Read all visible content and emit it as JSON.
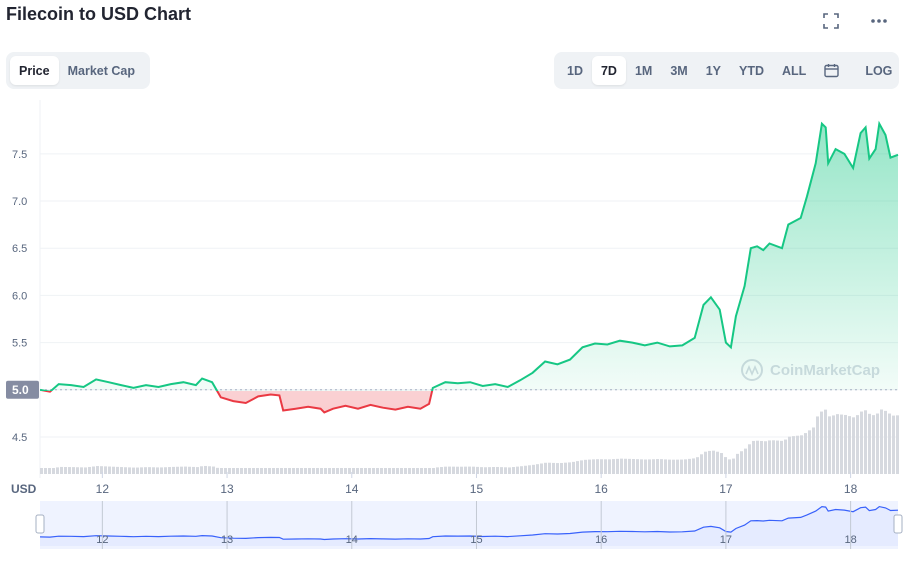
{
  "header": {
    "title": "Filecoin to USD Chart",
    "fullscreen_icon": "expand-icon",
    "more_icon": "more-horizontal-icon"
  },
  "toggle": {
    "items": [
      "Price",
      "Market Cap"
    ],
    "active": "Price"
  },
  "ranges": {
    "items": [
      "1D",
      "7D",
      "1M",
      "3M",
      "1Y",
      "YTD",
      "ALL"
    ],
    "active": "7D",
    "calendar_icon": "calendar-icon",
    "log_label": "LOG"
  },
  "watermark": "CoinMarketCap",
  "colors": {
    "up": "#16c784",
    "down": "#ea3943",
    "volume": "#d6d9df",
    "navigator_line": "#3861fb",
    "navigator_fill": "#e5ebff"
  },
  "chart_data": {
    "type": "line",
    "x_unit": "day",
    "xlabel": "",
    "ylabel": "USD",
    "xlim": [
      11.5,
      18.38
    ],
    "ylim": [
      4.15,
      7.88
    ],
    "yticks": [
      4.5,
      5.0,
      5.5,
      6.0,
      6.5,
      7.0,
      7.5
    ],
    "xticks": [
      12,
      13,
      14,
      15,
      16,
      17,
      18
    ],
    "reference_price": 5.0,
    "current_label": "5.0",
    "series": [
      {
        "values": [
          [
            11.5,
            5.0
          ],
          [
            11.58,
            4.98
          ],
          [
            11.65,
            5.06
          ],
          [
            11.75,
            5.05
          ],
          [
            11.85,
            5.03
          ],
          [
            11.95,
            5.11
          ],
          [
            12.05,
            5.08
          ],
          [
            12.15,
            5.05
          ],
          [
            12.25,
            5.02
          ],
          [
            12.35,
            5.05
          ],
          [
            12.45,
            5.03
          ],
          [
            12.55,
            5.06
          ],
          [
            12.65,
            5.08
          ],
          [
            12.75,
            5.05
          ],
          [
            12.8,
            5.12
          ],
          [
            12.88,
            5.08
          ],
          [
            12.95,
            4.92
          ],
          [
            13.05,
            4.88
          ],
          [
            13.15,
            4.86
          ],
          [
            13.25,
            4.93
          ],
          [
            13.35,
            4.95
          ],
          [
            13.42,
            4.94
          ],
          [
            13.45,
            4.78
          ],
          [
            13.55,
            4.8
          ],
          [
            13.65,
            4.82
          ],
          [
            13.75,
            4.8
          ],
          [
            13.78,
            4.76
          ],
          [
            13.85,
            4.8
          ],
          [
            13.95,
            4.83
          ],
          [
            14.05,
            4.8
          ],
          [
            14.15,
            4.84
          ],
          [
            14.25,
            4.81
          ],
          [
            14.35,
            4.79
          ],
          [
            14.45,
            4.82
          ],
          [
            14.55,
            4.8
          ],
          [
            14.62,
            4.85
          ],
          [
            14.65,
            5.02
          ],
          [
            14.75,
            5.08
          ],
          [
            14.85,
            5.07
          ],
          [
            14.95,
            5.08
          ],
          [
            15.05,
            5.04
          ],
          [
            15.15,
            5.06
          ],
          [
            15.25,
            5.03
          ],
          [
            15.35,
            5.1
          ],
          [
            15.45,
            5.18
          ],
          [
            15.55,
            5.3
          ],
          [
            15.65,
            5.27
          ],
          [
            15.75,
            5.32
          ],
          [
            15.85,
            5.45
          ],
          [
            15.95,
            5.49
          ],
          [
            16.05,
            5.48
          ],
          [
            16.15,
            5.52
          ],
          [
            16.25,
            5.5
          ],
          [
            16.35,
            5.47
          ],
          [
            16.45,
            5.5
          ],
          [
            16.55,
            5.46
          ],
          [
            16.65,
            5.47
          ],
          [
            16.75,
            5.55
          ],
          [
            16.82,
            5.9
          ],
          [
            16.88,
            5.98
          ],
          [
            16.95,
            5.85
          ],
          [
            17.0,
            5.5
          ],
          [
            17.04,
            5.45
          ],
          [
            17.08,
            5.78
          ],
          [
            17.15,
            6.1
          ],
          [
            17.2,
            6.5
          ],
          [
            17.25,
            6.52
          ],
          [
            17.3,
            6.48
          ],
          [
            17.35,
            6.55
          ],
          [
            17.45,
            6.5
          ],
          [
            17.5,
            6.75
          ],
          [
            17.6,
            6.82
          ],
          [
            17.65,
            7.05
          ],
          [
            17.72,
            7.4
          ],
          [
            17.77,
            7.82
          ],
          [
            17.8,
            7.78
          ],
          [
            17.82,
            7.4
          ],
          [
            17.88,
            7.55
          ],
          [
            17.95,
            7.5
          ],
          [
            18.02,
            7.35
          ],
          [
            18.08,
            7.72
          ],
          [
            18.12,
            7.78
          ],
          [
            18.15,
            7.45
          ],
          [
            18.2,
            7.55
          ],
          [
            18.23,
            7.82
          ],
          [
            18.28,
            7.7
          ],
          [
            18.32,
            7.46
          ],
          [
            18.38,
            7.49
          ]
        ]
      }
    ],
    "navigator": {
      "x_range": [
        11.5,
        18.38
      ],
      "xticks": [
        12,
        13,
        14,
        15,
        16,
        17,
        18
      ]
    }
  }
}
